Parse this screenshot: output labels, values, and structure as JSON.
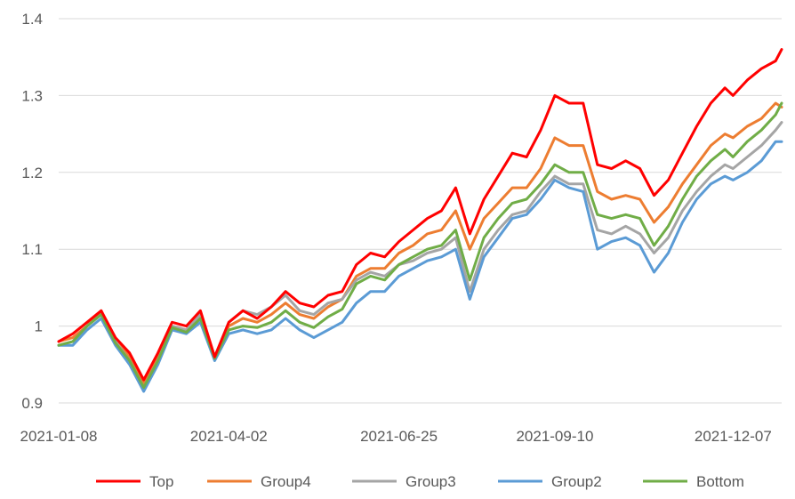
{
  "chart_data": {
    "type": "line",
    "x_ticks": [
      "2021-01-08",
      "2021-04-02",
      "2021-06-25",
      "2021-09-10",
      "2021-12-07"
    ],
    "y_ticks": [
      "0.9",
      "1",
      "1.1",
      "1.2",
      "1.3",
      "1.4"
    ],
    "ylim": [
      0.9,
      1.4
    ],
    "xlim": [
      "2021-01-08",
      "2021-12-31"
    ],
    "grid": "horizontal",
    "legend_position": "bottom",
    "series": [
      {
        "name": "Top",
        "color": "#FF0000",
        "points": [
          [
            "2021-01-08",
            0.98
          ],
          [
            "2021-01-15",
            0.99
          ],
          [
            "2021-01-22",
            1.005
          ],
          [
            "2021-01-29",
            1.02
          ],
          [
            "2021-02-05",
            0.985
          ],
          [
            "2021-02-12",
            0.965
          ],
          [
            "2021-02-19",
            0.93
          ],
          [
            "2021-02-26",
            0.965
          ],
          [
            "2021-03-05",
            1.005
          ],
          [
            "2021-03-12",
            1.0
          ],
          [
            "2021-03-19",
            1.02
          ],
          [
            "2021-03-26",
            0.96
          ],
          [
            "2021-04-02",
            1.005
          ],
          [
            "2021-04-09",
            1.02
          ],
          [
            "2021-04-16",
            1.01
          ],
          [
            "2021-04-23",
            1.025
          ],
          [
            "2021-04-30",
            1.045
          ],
          [
            "2021-05-07",
            1.03
          ],
          [
            "2021-05-14",
            1.025
          ],
          [
            "2021-05-21",
            1.04
          ],
          [
            "2021-05-28",
            1.045
          ],
          [
            "2021-06-04",
            1.08
          ],
          [
            "2021-06-11",
            1.095
          ],
          [
            "2021-06-18",
            1.09
          ],
          [
            "2021-06-25",
            1.11
          ],
          [
            "2021-07-02",
            1.125
          ],
          [
            "2021-07-09",
            1.14
          ],
          [
            "2021-07-16",
            1.15
          ],
          [
            "2021-07-23",
            1.18
          ],
          [
            "2021-07-30",
            1.12
          ],
          [
            "2021-08-06",
            1.165
          ],
          [
            "2021-08-13",
            1.195
          ],
          [
            "2021-08-20",
            1.225
          ],
          [
            "2021-08-27",
            1.22
          ],
          [
            "2021-09-03",
            1.255
          ],
          [
            "2021-09-10",
            1.3
          ],
          [
            "2021-09-17",
            1.29
          ],
          [
            "2021-09-24",
            1.29
          ],
          [
            "2021-10-01",
            1.21
          ],
          [
            "2021-10-08",
            1.205
          ],
          [
            "2021-10-15",
            1.215
          ],
          [
            "2021-10-22",
            1.205
          ],
          [
            "2021-10-29",
            1.17
          ],
          [
            "2021-11-05",
            1.19
          ],
          [
            "2021-11-12",
            1.225
          ],
          [
            "2021-11-19",
            1.26
          ],
          [
            "2021-11-26",
            1.29
          ],
          [
            "2021-12-03",
            1.31
          ],
          [
            "2021-12-07",
            1.3
          ],
          [
            "2021-12-14",
            1.32
          ],
          [
            "2021-12-21",
            1.335
          ],
          [
            "2021-12-28",
            1.345
          ],
          [
            "2021-12-31",
            1.36
          ]
        ]
      },
      {
        "name": "Group4",
        "color": "#ED7D31",
        "points": [
          [
            "2021-01-08",
            0.98
          ],
          [
            "2021-01-15",
            0.985
          ],
          [
            "2021-01-22",
            1.0
          ],
          [
            "2021-01-29",
            1.02
          ],
          [
            "2021-02-05",
            0.98
          ],
          [
            "2021-02-12",
            0.96
          ],
          [
            "2021-02-19",
            0.925
          ],
          [
            "2021-02-26",
            0.96
          ],
          [
            "2021-03-05",
            1.0
          ],
          [
            "2021-03-12",
            0.995
          ],
          [
            "2021-03-19",
            1.015
          ],
          [
            "2021-03-26",
            0.96
          ],
          [
            "2021-04-02",
            1.0
          ],
          [
            "2021-04-09",
            1.01
          ],
          [
            "2021-04-16",
            1.005
          ],
          [
            "2021-04-23",
            1.015
          ],
          [
            "2021-04-30",
            1.03
          ],
          [
            "2021-05-07",
            1.015
          ],
          [
            "2021-05-14",
            1.01
          ],
          [
            "2021-05-21",
            1.025
          ],
          [
            "2021-05-28",
            1.035
          ],
          [
            "2021-06-04",
            1.065
          ],
          [
            "2021-06-11",
            1.075
          ],
          [
            "2021-06-18",
            1.075
          ],
          [
            "2021-06-25",
            1.095
          ],
          [
            "2021-07-02",
            1.105
          ],
          [
            "2021-07-09",
            1.12
          ],
          [
            "2021-07-16",
            1.125
          ],
          [
            "2021-07-23",
            1.15
          ],
          [
            "2021-07-30",
            1.1
          ],
          [
            "2021-08-06",
            1.14
          ],
          [
            "2021-08-13",
            1.16
          ],
          [
            "2021-08-20",
            1.18
          ],
          [
            "2021-08-27",
            1.18
          ],
          [
            "2021-09-03",
            1.205
          ],
          [
            "2021-09-10",
            1.245
          ],
          [
            "2021-09-17",
            1.235
          ],
          [
            "2021-09-24",
            1.235
          ],
          [
            "2021-10-01",
            1.175
          ],
          [
            "2021-10-08",
            1.165
          ],
          [
            "2021-10-15",
            1.17
          ],
          [
            "2021-10-22",
            1.165
          ],
          [
            "2021-10-29",
            1.135
          ],
          [
            "2021-11-05",
            1.155
          ],
          [
            "2021-11-12",
            1.185
          ],
          [
            "2021-11-19",
            1.21
          ],
          [
            "2021-11-26",
            1.235
          ],
          [
            "2021-12-03",
            1.25
          ],
          [
            "2021-12-07",
            1.245
          ],
          [
            "2021-12-14",
            1.26
          ],
          [
            "2021-12-21",
            1.27
          ],
          [
            "2021-12-28",
            1.29
          ],
          [
            "2021-12-31",
            1.285
          ]
        ]
      },
      {
        "name": "Group3",
        "color": "#A5A5A5",
        "points": [
          [
            "2021-01-08",
            0.975
          ],
          [
            "2021-01-15",
            0.98
          ],
          [
            "2021-01-22",
            1.0
          ],
          [
            "2021-01-29",
            1.015
          ],
          [
            "2021-02-05",
            0.98
          ],
          [
            "2021-02-12",
            0.955
          ],
          [
            "2021-02-19",
            0.92
          ],
          [
            "2021-02-26",
            0.955
          ],
          [
            "2021-03-05",
            1.0
          ],
          [
            "2021-03-12",
            0.995
          ],
          [
            "2021-03-19",
            1.015
          ],
          [
            "2021-03-26",
            0.96
          ],
          [
            "2021-04-02",
            1.005
          ],
          [
            "2021-04-09",
            1.02
          ],
          [
            "2021-04-16",
            1.015
          ],
          [
            "2021-04-23",
            1.025
          ],
          [
            "2021-04-30",
            1.04
          ],
          [
            "2021-05-07",
            1.02
          ],
          [
            "2021-05-14",
            1.015
          ],
          [
            "2021-05-21",
            1.03
          ],
          [
            "2021-05-28",
            1.035
          ],
          [
            "2021-06-04",
            1.06
          ],
          [
            "2021-06-11",
            1.07
          ],
          [
            "2021-06-18",
            1.065
          ],
          [
            "2021-06-25",
            1.08
          ],
          [
            "2021-07-02",
            1.085
          ],
          [
            "2021-07-09",
            1.095
          ],
          [
            "2021-07-16",
            1.1
          ],
          [
            "2021-07-23",
            1.115
          ],
          [
            "2021-07-30",
            1.045
          ],
          [
            "2021-08-06",
            1.1
          ],
          [
            "2021-08-13",
            1.125
          ],
          [
            "2021-08-20",
            1.145
          ],
          [
            "2021-08-27",
            1.15
          ],
          [
            "2021-09-03",
            1.175
          ],
          [
            "2021-09-10",
            1.195
          ],
          [
            "2021-09-17",
            1.185
          ],
          [
            "2021-09-24",
            1.185
          ],
          [
            "2021-10-01",
            1.125
          ],
          [
            "2021-10-08",
            1.12
          ],
          [
            "2021-10-15",
            1.13
          ],
          [
            "2021-10-22",
            1.12
          ],
          [
            "2021-10-29",
            1.095
          ],
          [
            "2021-11-05",
            1.115
          ],
          [
            "2021-11-12",
            1.15
          ],
          [
            "2021-11-19",
            1.175
          ],
          [
            "2021-11-26",
            1.195
          ],
          [
            "2021-12-03",
            1.21
          ],
          [
            "2021-12-07",
            1.205
          ],
          [
            "2021-12-14",
            1.22
          ],
          [
            "2021-12-21",
            1.235
          ],
          [
            "2021-12-28",
            1.255
          ],
          [
            "2021-12-31",
            1.265
          ]
        ]
      },
      {
        "name": "Group2",
        "color": "#5B9BD5",
        "points": [
          [
            "2021-01-08",
            0.975
          ],
          [
            "2021-01-15",
            0.975
          ],
          [
            "2021-01-22",
            0.995
          ],
          [
            "2021-01-29",
            1.01
          ],
          [
            "2021-02-05",
            0.975
          ],
          [
            "2021-02-12",
            0.95
          ],
          [
            "2021-02-19",
            0.915
          ],
          [
            "2021-02-26",
            0.95
          ],
          [
            "2021-03-05",
            0.995
          ],
          [
            "2021-03-12",
            0.99
          ],
          [
            "2021-03-19",
            1.005
          ],
          [
            "2021-03-26",
            0.955
          ],
          [
            "2021-04-02",
            0.99
          ],
          [
            "2021-04-09",
            0.995
          ],
          [
            "2021-04-16",
            0.99
          ],
          [
            "2021-04-23",
            0.995
          ],
          [
            "2021-04-30",
            1.01
          ],
          [
            "2021-05-07",
            0.995
          ],
          [
            "2021-05-14",
            0.985
          ],
          [
            "2021-05-21",
            0.995
          ],
          [
            "2021-05-28",
            1.005
          ],
          [
            "2021-06-04",
            1.03
          ],
          [
            "2021-06-11",
            1.045
          ],
          [
            "2021-06-18",
            1.045
          ],
          [
            "2021-06-25",
            1.065
          ],
          [
            "2021-07-02",
            1.075
          ],
          [
            "2021-07-09",
            1.085
          ],
          [
            "2021-07-16",
            1.09
          ],
          [
            "2021-07-23",
            1.1
          ],
          [
            "2021-07-30",
            1.035
          ],
          [
            "2021-08-06",
            1.09
          ],
          [
            "2021-08-13",
            1.115
          ],
          [
            "2021-08-20",
            1.14
          ],
          [
            "2021-08-27",
            1.145
          ],
          [
            "2021-09-03",
            1.165
          ],
          [
            "2021-09-10",
            1.19
          ],
          [
            "2021-09-17",
            1.18
          ],
          [
            "2021-09-24",
            1.175
          ],
          [
            "2021-10-01",
            1.1
          ],
          [
            "2021-10-08",
            1.11
          ],
          [
            "2021-10-15",
            1.115
          ],
          [
            "2021-10-22",
            1.105
          ],
          [
            "2021-10-29",
            1.07
          ],
          [
            "2021-11-05",
            1.095
          ],
          [
            "2021-11-12",
            1.135
          ],
          [
            "2021-11-19",
            1.165
          ],
          [
            "2021-11-26",
            1.185
          ],
          [
            "2021-12-03",
            1.195
          ],
          [
            "2021-12-07",
            1.19
          ],
          [
            "2021-12-14",
            1.2
          ],
          [
            "2021-12-21",
            1.215
          ],
          [
            "2021-12-28",
            1.24
          ],
          [
            "2021-12-31",
            1.24
          ]
        ]
      },
      {
        "name": "Bottom",
        "color": "#70AD47",
        "points": [
          [
            "2021-01-08",
            0.975
          ],
          [
            "2021-01-15",
            0.98
          ],
          [
            "2021-01-22",
            1.0
          ],
          [
            "2021-01-29",
            1.015
          ],
          [
            "2021-02-05",
            0.978
          ],
          [
            "2021-02-12",
            0.955
          ],
          [
            "2021-02-19",
            0.92
          ],
          [
            "2021-02-26",
            0.955
          ],
          [
            "2021-03-05",
            0.998
          ],
          [
            "2021-03-12",
            0.992
          ],
          [
            "2021-03-19",
            1.01
          ],
          [
            "2021-03-26",
            0.958
          ],
          [
            "2021-04-02",
            0.995
          ],
          [
            "2021-04-09",
            1.0
          ],
          [
            "2021-04-16",
            0.998
          ],
          [
            "2021-04-23",
            1.005
          ],
          [
            "2021-04-30",
            1.02
          ],
          [
            "2021-05-07",
            1.005
          ],
          [
            "2021-05-14",
            0.998
          ],
          [
            "2021-05-21",
            1.012
          ],
          [
            "2021-05-28",
            1.022
          ],
          [
            "2021-06-04",
            1.055
          ],
          [
            "2021-06-11",
            1.065
          ],
          [
            "2021-06-18",
            1.06
          ],
          [
            "2021-06-25",
            1.08
          ],
          [
            "2021-07-02",
            1.09
          ],
          [
            "2021-07-09",
            1.1
          ],
          [
            "2021-07-16",
            1.105
          ],
          [
            "2021-07-23",
            1.125
          ],
          [
            "2021-07-30",
            1.06
          ],
          [
            "2021-08-06",
            1.115
          ],
          [
            "2021-08-13",
            1.14
          ],
          [
            "2021-08-20",
            1.16
          ],
          [
            "2021-08-27",
            1.165
          ],
          [
            "2021-09-03",
            1.185
          ],
          [
            "2021-09-10",
            1.21
          ],
          [
            "2021-09-17",
            1.2
          ],
          [
            "2021-09-24",
            1.2
          ],
          [
            "2021-10-01",
            1.145
          ],
          [
            "2021-10-08",
            1.14
          ],
          [
            "2021-10-15",
            1.145
          ],
          [
            "2021-10-22",
            1.14
          ],
          [
            "2021-10-29",
            1.105
          ],
          [
            "2021-11-05",
            1.13
          ],
          [
            "2021-11-12",
            1.165
          ],
          [
            "2021-11-19",
            1.195
          ],
          [
            "2021-11-26",
            1.215
          ],
          [
            "2021-12-03",
            1.23
          ],
          [
            "2021-12-07",
            1.22
          ],
          [
            "2021-12-14",
            1.24
          ],
          [
            "2021-12-21",
            1.255
          ],
          [
            "2021-12-28",
            1.275
          ],
          [
            "2021-12-31",
            1.29
          ]
        ]
      }
    ]
  }
}
